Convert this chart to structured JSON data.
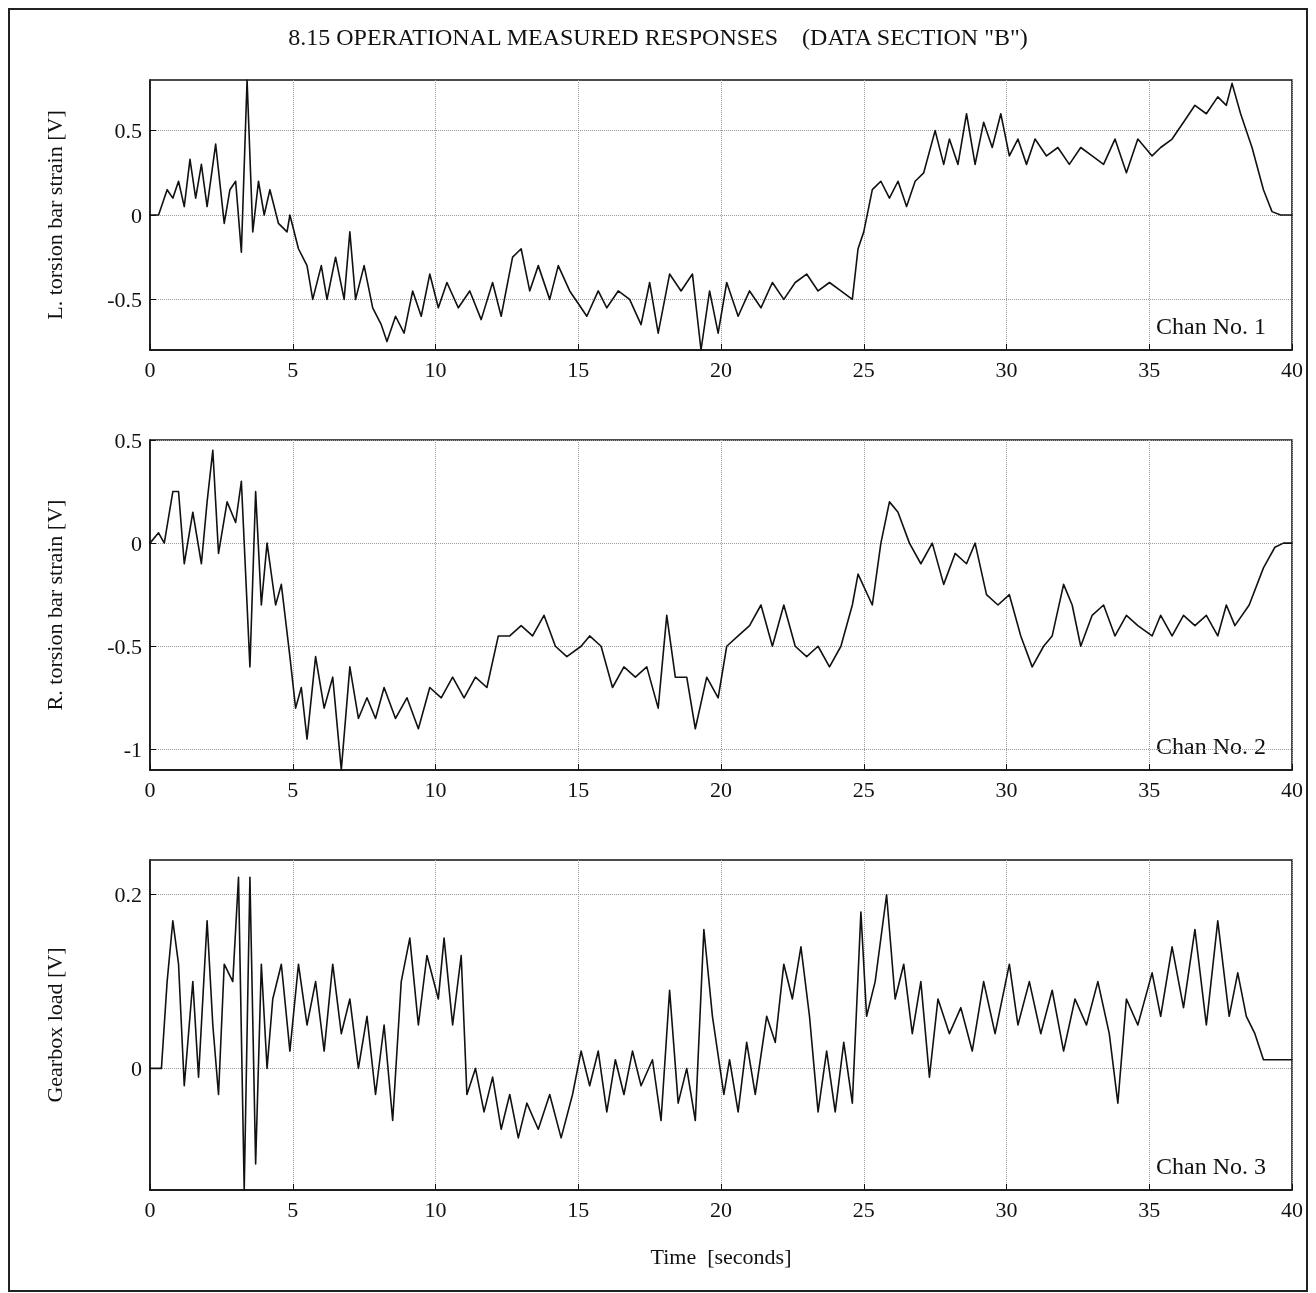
{
  "chart_data": [
    {
      "type": "line",
      "title": "8.15 OPERATIONAL MEASURED RESPONSES    (DATA SECTION \"B\")",
      "ylabel": "L. torsion bar strain [V]",
      "annotations": [
        "Chan No. 1"
      ],
      "xlim": [
        0,
        40
      ],
      "xticks": [
        0,
        5,
        10,
        15,
        20,
        25,
        30,
        35,
        40
      ],
      "ylim": [
        -0.8,
        0.8
      ],
      "yticks": [
        -0.5,
        0,
        0.5
      ],
      "grid": true,
      "line_style": "solid",
      "marker": "none",
      "series": [
        {
          "color": "#111111",
          "x": [
            0,
            0.3,
            0.6,
            0.8,
            1.0,
            1.2,
            1.4,
            1.6,
            1.8,
            2.0,
            2.3,
            2.6,
            2.8,
            3.0,
            3.2,
            3.4,
            3.6,
            3.8,
            4.0,
            4.2,
            4.5,
            4.8,
            4.9,
            5.2,
            5.5,
            5.7,
            6.0,
            6.2,
            6.5,
            6.8,
            7.0,
            7.2,
            7.5,
            7.8,
            8.1,
            8.3,
            8.6,
            8.9,
            9.2,
            9.5,
            9.8,
            10.1,
            10.4,
            10.8,
            11.2,
            11.6,
            12.0,
            12.3,
            12.7,
            13.0,
            13.3,
            13.6,
            14.0,
            14.3,
            14.7,
            15.1,
            15.3,
            15.7,
            16.0,
            16.4,
            16.8,
            17.2,
            17.5,
            17.8,
            18.2,
            18.6,
            19.0,
            19.3,
            19.6,
            19.9,
            20.2,
            20.6,
            21.0,
            21.4,
            21.8,
            22.2,
            22.6,
            23.0,
            23.4,
            23.8,
            24.2,
            24.6,
            24.8,
            25.0,
            25.3,
            25.6,
            25.9,
            26.2,
            26.5,
            26.8,
            27.1,
            27.5,
            27.8,
            28.0,
            28.3,
            28.6,
            28.9,
            29.2,
            29.5,
            29.8,
            30.1,
            30.4,
            30.7,
            31.0,
            31.4,
            31.8,
            32.2,
            32.6,
            33.0,
            33.4,
            33.8,
            34.2,
            34.6,
            35.1,
            35.4,
            35.8,
            36.2,
            36.6,
            37.0,
            37.4,
            37.7,
            37.9,
            38.2,
            38.6,
            39.0,
            39.3,
            39.6,
            40
          ],
          "values": [
            0,
            0,
            0.15,
            0.1,
            0.2,
            0.05,
            0.33,
            0.1,
            0.3,
            0.05,
            0.42,
            -0.05,
            0.15,
            0.2,
            -0.22,
            0.8,
            -0.1,
            0.2,
            0,
            0.15,
            -0.05,
            -0.1,
            0,
            -0.2,
            -0.3,
            -0.5,
            -0.3,
            -0.5,
            -0.25,
            -0.5,
            -0.1,
            -0.5,
            -0.3,
            -0.55,
            -0.65,
            -0.75,
            -0.6,
            -0.7,
            -0.45,
            -0.6,
            -0.35,
            -0.55,
            -0.4,
            -0.55,
            -0.45,
            -0.62,
            -0.4,
            -0.6,
            -0.25,
            -0.2,
            -0.45,
            -0.3,
            -0.5,
            -0.3,
            -0.45,
            -0.55,
            -0.6,
            -0.45,
            -0.55,
            -0.45,
            -0.5,
            -0.65,
            -0.4,
            -0.7,
            -0.35,
            -0.45,
            -0.35,
            -0.8,
            -0.45,
            -0.7,
            -0.4,
            -0.6,
            -0.45,
            -0.55,
            -0.4,
            -0.5,
            -0.4,
            -0.35,
            -0.45,
            -0.4,
            -0.45,
            -0.5,
            -0.2,
            -0.1,
            0.15,
            0.2,
            0.1,
            0.2,
            0.05,
            0.2,
            0.25,
            0.5,
            0.3,
            0.45,
            0.3,
            0.6,
            0.3,
            0.55,
            0.4,
            0.6,
            0.35,
            0.45,
            0.3,
            0.45,
            0.35,
            0.4,
            0.3,
            0.4,
            0.35,
            0.3,
            0.45,
            0.25,
            0.45,
            0.35,
            0.4,
            0.45,
            0.55,
            0.65,
            0.6,
            0.7,
            0.65,
            0.78,
            0.6,
            0.4,
            0.15,
            0.02,
            0,
            0
          ]
        }
      ]
    },
    {
      "type": "line",
      "ylabel": "R. torsion bar strain [V]",
      "annotations": [
        "Chan No. 2"
      ],
      "xlim": [
        0,
        40
      ],
      "xticks": [
        0,
        5,
        10,
        15,
        20,
        25,
        30,
        35,
        40
      ],
      "ylim": [
        -1.1,
        0.5
      ],
      "yticks": [
        -1,
        -0.5,
        0,
        0.5
      ],
      "grid": true,
      "line_style": "solid",
      "marker": "none",
      "series": [
        {
          "color": "#111111",
          "x": [
            0,
            0.3,
            0.5,
            0.8,
            1.0,
            1.2,
            1.5,
            1.8,
            2.0,
            2.2,
            2.4,
            2.7,
            3.0,
            3.2,
            3.5,
            3.7,
            3.9,
            4.1,
            4.4,
            4.6,
            4.9,
            5.1,
            5.3,
            5.5,
            5.8,
            6.1,
            6.4,
            6.7,
            7.0,
            7.3,
            7.6,
            7.9,
            8.2,
            8.6,
            9.0,
            9.4,
            9.8,
            10.2,
            10.6,
            11.0,
            11.4,
            11.8,
            12.2,
            12.6,
            13.0,
            13.4,
            13.8,
            14.2,
            14.6,
            15.1,
            15.4,
            15.8,
            16.2,
            16.6,
            17.0,
            17.4,
            17.8,
            18.1,
            18.4,
            18.8,
            19.1,
            19.5,
            19.9,
            20.2,
            20.6,
            21.0,
            21.4,
            21.8,
            22.2,
            22.6,
            23.0,
            23.4,
            23.8,
            24.2,
            24.6,
            24.8,
            25.3,
            25.6,
            25.9,
            26.2,
            26.6,
            27.0,
            27.4,
            27.8,
            28.2,
            28.6,
            28.9,
            29.3,
            29.7,
            30.1,
            30.5,
            30.9,
            31.3,
            31.6,
            32.0,
            32.3,
            32.6,
            33.0,
            33.4,
            33.8,
            34.2,
            34.6,
            35.1,
            35.4,
            35.8,
            36.2,
            36.6,
            37.0,
            37.4,
            37.7,
            38.0,
            38.5,
            39.0,
            39.4,
            39.7,
            40
          ],
          "values": [
            0,
            0.05,
            0,
            0.25,
            0.25,
            -0.1,
            0.15,
            -0.1,
            0.2,
            0.45,
            -0.05,
            0.2,
            0.1,
            0.3,
            -0.6,
            0.25,
            -0.3,
            0,
            -0.3,
            -0.2,
            -0.55,
            -0.8,
            -0.7,
            -0.95,
            -0.55,
            -0.8,
            -0.65,
            -1.1,
            -0.6,
            -0.85,
            -0.75,
            -0.85,
            -0.7,
            -0.85,
            -0.75,
            -0.9,
            -0.7,
            -0.75,
            -0.65,
            -0.75,
            -0.65,
            -0.7,
            -0.45,
            -0.45,
            -0.4,
            -0.45,
            -0.35,
            -0.5,
            -0.55,
            -0.5,
            -0.45,
            -0.5,
            -0.7,
            -0.6,
            -0.65,
            -0.6,
            -0.8,
            -0.35,
            -0.65,
            -0.65,
            -0.9,
            -0.65,
            -0.75,
            -0.5,
            -0.45,
            -0.4,
            -0.3,
            -0.5,
            -0.3,
            -0.5,
            -0.55,
            -0.5,
            -0.6,
            -0.5,
            -0.3,
            -0.15,
            -0.3,
            0,
            0.2,
            0.15,
            0,
            -0.1,
            0,
            -0.2,
            -0.05,
            -0.1,
            0,
            -0.25,
            -0.3,
            -0.25,
            -0.45,
            -0.6,
            -0.5,
            -0.45,
            -0.2,
            -0.3,
            -0.5,
            -0.35,
            -0.3,
            -0.45,
            -0.35,
            -0.4,
            -0.45,
            -0.35,
            -0.45,
            -0.35,
            -0.4,
            -0.35,
            -0.45,
            -0.3,
            -0.4,
            -0.3,
            -0.12,
            -0.02,
            0,
            0
          ]
        }
      ]
    },
    {
      "type": "line",
      "ylabel": "Gearbox load [V]",
      "xlabel": "Time  [seconds]",
      "annotations": [
        "Chan No. 3"
      ],
      "xlim": [
        0,
        40
      ],
      "xticks": [
        0,
        5,
        10,
        15,
        20,
        25,
        30,
        35,
        40
      ],
      "ylim": [
        -0.14,
        0.24
      ],
      "yticks": [
        0,
        0.2
      ],
      "grid": true,
      "line_style": "solid",
      "marker": "none",
      "series": [
        {
          "color": "#111111",
          "x": [
            0,
            0.4,
            0.6,
            0.8,
            1.0,
            1.2,
            1.5,
            1.7,
            2.0,
            2.2,
            2.4,
            2.6,
            2.9,
            3.1,
            3.3,
            3.5,
            3.7,
            3.9,
            4.1,
            4.3,
            4.6,
            4.9,
            5.2,
            5.5,
            5.8,
            6.1,
            6.4,
            6.7,
            7.0,
            7.3,
            7.6,
            7.9,
            8.2,
            8.5,
            8.8,
            9.1,
            9.4,
            9.7,
            10.1,
            10.3,
            10.6,
            10.9,
            11.1,
            11.4,
            11.7,
            12.0,
            12.3,
            12.6,
            12.9,
            13.2,
            13.6,
            14.0,
            14.4,
            14.8,
            15.1,
            15.4,
            15.7,
            16.0,
            16.3,
            16.6,
            16.9,
            17.2,
            17.6,
            17.9,
            18.2,
            18.5,
            18.8,
            19.1,
            19.4,
            19.7,
            20.1,
            20.3,
            20.6,
            20.9,
            21.2,
            21.6,
            21.9,
            22.2,
            22.5,
            22.8,
            23.1,
            23.4,
            23.7,
            24.0,
            24.3,
            24.6,
            24.9,
            25.1,
            25.4,
            25.8,
            26.1,
            26.4,
            26.7,
            27.0,
            27.3,
            27.6,
            28.0,
            28.4,
            28.8,
            29.2,
            29.6,
            30.1,
            30.4,
            30.8,
            31.2,
            31.6,
            32.0,
            32.4,
            32.8,
            33.2,
            33.6,
            33.9,
            34.2,
            34.6,
            35.1,
            35.4,
            35.8,
            36.2,
            36.6,
            37.0,
            37.4,
            37.8,
            38.1,
            38.4,
            38.7,
            39.0,
            39.5,
            40
          ],
          "values": [
            0,
            0,
            0.1,
            0.17,
            0.12,
            -0.02,
            0.1,
            -0.01,
            0.17,
            0.05,
            -0.03,
            0.12,
            0.1,
            0.22,
            -0.14,
            0.22,
            -0.11,
            0.12,
            0,
            0.08,
            0.12,
            0.02,
            0.12,
            0.05,
            0.1,
            0.02,
            0.12,
            0.04,
            0.08,
            0,
            0.06,
            -0.03,
            0.05,
            -0.06,
            0.1,
            0.15,
            0.05,
            0.13,
            0.08,
            0.15,
            0.05,
            0.13,
            -0.03,
            0,
            -0.05,
            -0.01,
            -0.07,
            -0.03,
            -0.08,
            -0.04,
            -0.07,
            -0.03,
            -0.08,
            -0.03,
            0.02,
            -0.02,
            0.02,
            -0.05,
            0.01,
            -0.03,
            0.02,
            -0.02,
            0.01,
            -0.06,
            0.09,
            -0.04,
            0,
            -0.06,
            0.16,
            0.06,
            -0.03,
            0.01,
            -0.05,
            0.03,
            -0.03,
            0.06,
            0.03,
            0.12,
            0.08,
            0.14,
            0.06,
            -0.05,
            0.02,
            -0.05,
            0.03,
            -0.04,
            0.18,
            0.06,
            0.1,
            0.2,
            0.08,
            0.12,
            0.04,
            0.1,
            -0.01,
            0.08,
            0.04,
            0.07,
            0.02,
            0.1,
            0.04,
            0.12,
            0.05,
            0.1,
            0.04,
            0.09,
            0.02,
            0.08,
            0.05,
            0.1,
            0.04,
            -0.04,
            0.08,
            0.05,
            0.11,
            0.06,
            0.14,
            0.07,
            0.16,
            0.05,
            0.17,
            0.06,
            0.11,
            0.06,
            0.04,
            0.01,
            0.01,
            0.01
          ]
        }
      ]
    }
  ]
}
